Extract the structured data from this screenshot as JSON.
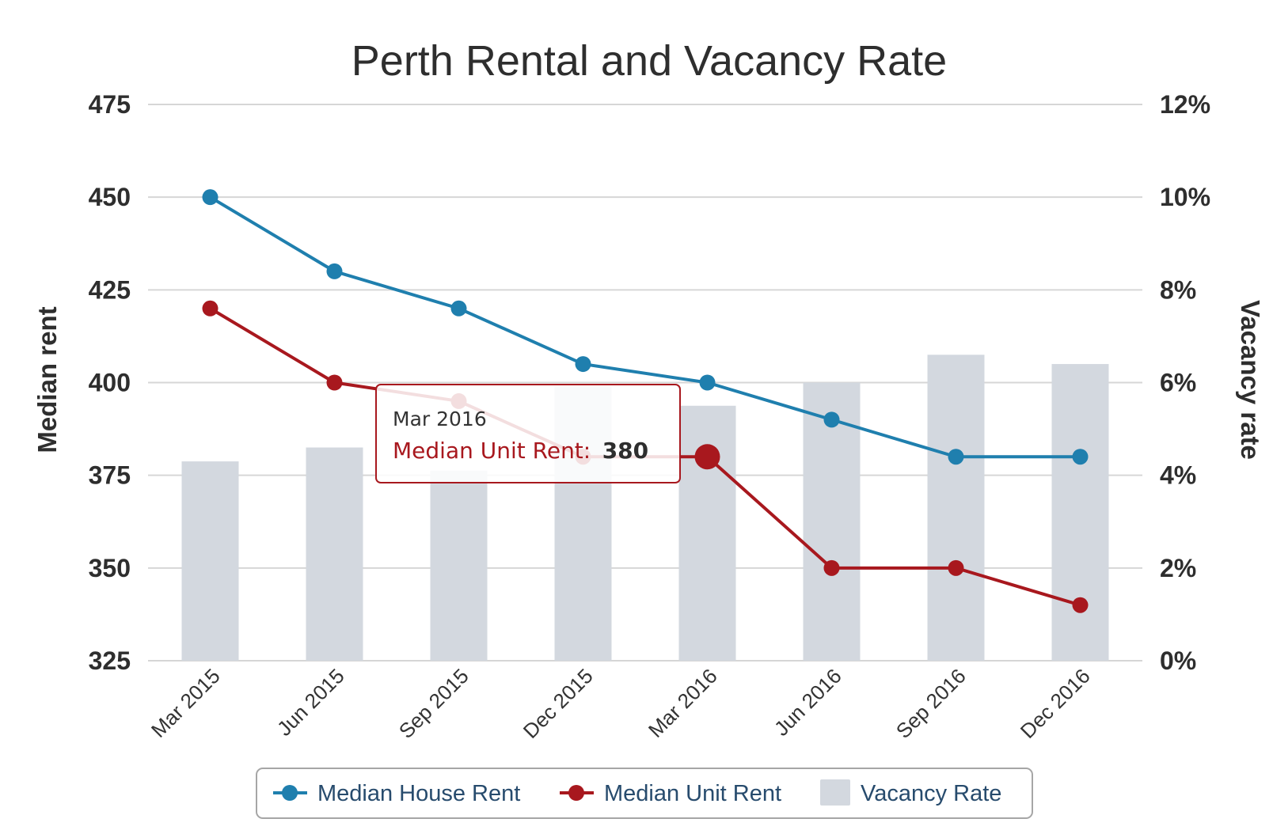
{
  "chart_data": {
    "type": "bar+line",
    "title": "Perth Rental and Vacancy Rate",
    "categories": [
      "Mar 2015",
      "Jun 2015",
      "Sep 2015",
      "Dec 2015",
      "Mar 2016",
      "Jun 2016",
      "Sep 2016",
      "Dec 2016"
    ],
    "y_left": {
      "label": "Median rent",
      "min": 325,
      "max": 475,
      "ticks": [
        "475",
        "450",
        "425",
        "400",
        "375",
        "350",
        "325"
      ],
      "tick_values": [
        475,
        450,
        425,
        400,
        375,
        350,
        325
      ]
    },
    "y_right": {
      "label": "Vacancy rate",
      "min": 0,
      "max": 12,
      "ticks": [
        "12%",
        "10%",
        "8%",
        "6%",
        "4%",
        "2%",
        "0%"
      ],
      "tick_values": [
        12,
        10,
        8,
        6,
        4,
        2,
        0
      ]
    },
    "series": [
      {
        "name": "Median House Rent",
        "type": "line",
        "axis": "left",
        "color": "#1f7fae",
        "values": [
          450,
          430,
          420,
          405,
          400,
          390,
          380,
          380
        ]
      },
      {
        "name": "Median Unit Rent",
        "type": "line",
        "axis": "left",
        "color": "#a8181e",
        "values": [
          420,
          400,
          395,
          380,
          380,
          350,
          350,
          340
        ]
      },
      {
        "name": "Vacancy Rate",
        "type": "bar",
        "axis": "right",
        "color": "#d3d8df",
        "values": [
          4.3,
          4.6,
          4.1,
          5.9,
          5.5,
          6.0,
          6.6,
          6.4
        ]
      }
    ],
    "legend": {
      "position": "bottom-center",
      "items": [
        "Median House Rent",
        "Median Unit Rent",
        "Vacancy Rate"
      ]
    },
    "tooltip": {
      "date": "Mar 2016",
      "series_label": "Median Unit Rent:",
      "value": "380",
      "highlight_series": 1,
      "highlight_index": 4
    },
    "grid": true
  }
}
